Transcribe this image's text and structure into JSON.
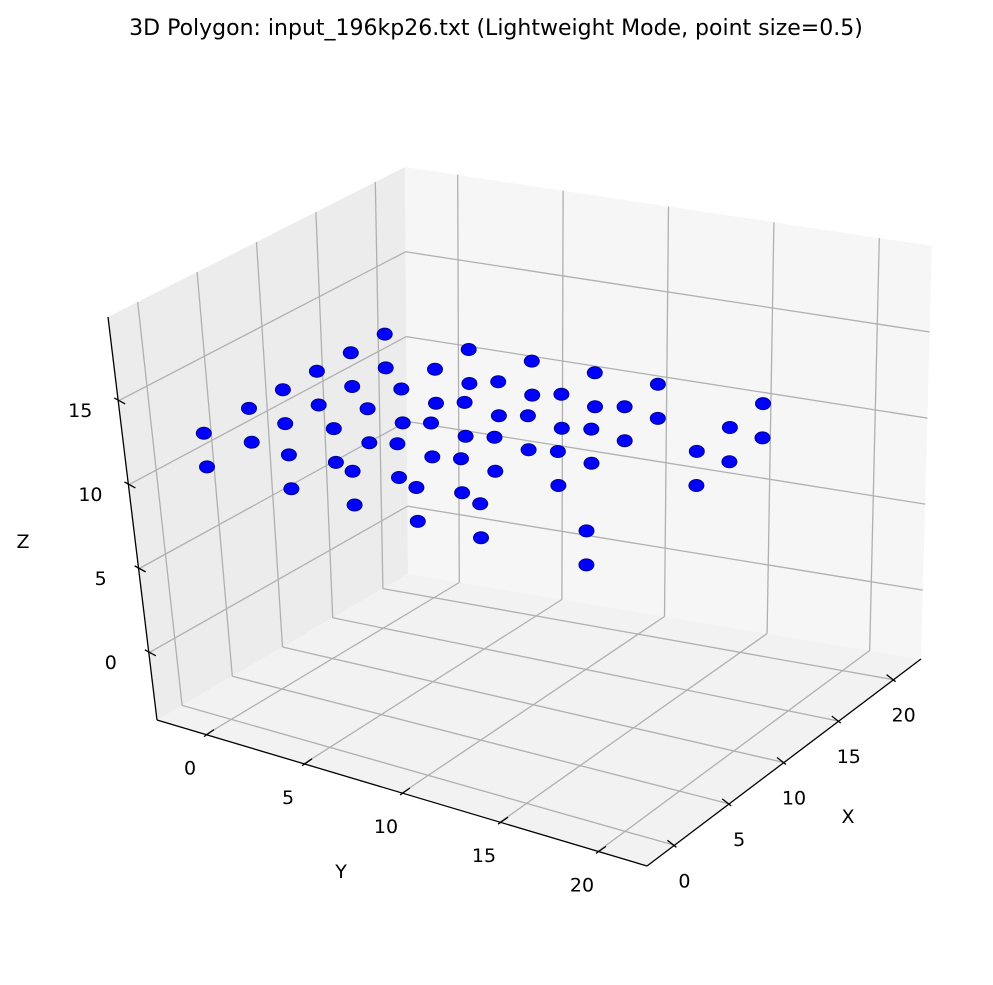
{
  "chart_data": {
    "type": "scatter",
    "projection": "3d",
    "title": "3D Polygon: input_196kp26.txt (Lightweight Mode, point size=0.5)",
    "xlabel": "X",
    "ylabel": "Y",
    "zlabel": "Z",
    "xticks": [
      "0",
      "5",
      "10",
      "15",
      "20"
    ],
    "yticks": [
      "0",
      "5",
      "10",
      "15",
      "20"
    ],
    "zticks": [
      "0",
      "5",
      "10",
      "15"
    ],
    "xlim": [
      -2.5,
      22.5
    ],
    "ylim": [
      -2.5,
      22.5
    ],
    "zlim": [
      -4,
      20
    ],
    "grid": true,
    "marker_color": "#0000ff",
    "marker_edge_color": "#00008b",
    "pane_colors": {
      "floor": "#f2f2f2",
      "left_wall": "#ececec",
      "back_wall": "#f6f6f6"
    },
    "grid_color": "#b0b0b0",
    "series": [
      {
        "points": [
          [
            16,
            0,
            11
          ],
          [
            16,
            0,
            13
          ],
          [
            16,
            4,
            11
          ],
          [
            16,
            4,
            13
          ],
          [
            16,
            7,
            11
          ],
          [
            16,
            7,
            13
          ],
          [
            16,
            10,
            11
          ],
          [
            16,
            10,
            13
          ],
          [
            16,
            13,
            11
          ],
          [
            16,
            13,
            13
          ],
          [
            16,
            18,
            11
          ],
          [
            16,
            18,
            13
          ],
          [
            13,
            0,
            11
          ],
          [
            13,
            0,
            13
          ],
          [
            13,
            4,
            11
          ],
          [
            13,
            4,
            13
          ],
          [
            13,
            7,
            11
          ],
          [
            13,
            7,
            13
          ],
          [
            13,
            10,
            11
          ],
          [
            13,
            10,
            13
          ],
          [
            13,
            13,
            11
          ],
          [
            13,
            13,
            13
          ],
          [
            10,
            0,
            11
          ],
          [
            10,
            0,
            13
          ],
          [
            10,
            4,
            11
          ],
          [
            10,
            4,
            13
          ],
          [
            10,
            7,
            11
          ],
          [
            10,
            7,
            13
          ],
          [
            10,
            10,
            11
          ],
          [
            10,
            10,
            13
          ],
          [
            7,
            0,
            11
          ],
          [
            7,
            0,
            13
          ],
          [
            7,
            4,
            11
          ],
          [
            7,
            4,
            13
          ],
          [
            7,
            7,
            11
          ],
          [
            7,
            7,
            13
          ],
          [
            4,
            0,
            11
          ],
          [
            4,
            0,
            13
          ],
          [
            4,
            4,
            11
          ],
          [
            4,
            4,
            13
          ],
          [
            0,
            0,
            11
          ],
          [
            0,
            0,
            13
          ],
          [
            0,
            4,
            11
          ],
          [
            0,
            4,
            13
          ],
          [
            0,
            7,
            11
          ],
          [
            0,
            7,
            13
          ],
          [
            0,
            10,
            11
          ],
          [
            0,
            10,
            13
          ],
          [
            0,
            13,
            11
          ],
          [
            0,
            13,
            13
          ],
          [
            0,
            18,
            11
          ],
          [
            0,
            18,
            13
          ],
          [
            4,
            7,
            11
          ],
          [
            4,
            7,
            13
          ],
          [
            7,
            10,
            11
          ],
          [
            7,
            10,
            13
          ],
          [
            10,
            13,
            11
          ],
          [
            10,
            13,
            13
          ],
          [
            13,
            18,
            11
          ],
          [
            13,
            18,
            13
          ],
          [
            4,
            10,
            11
          ],
          [
            4,
            10,
            13
          ],
          [
            7,
            13,
            11
          ],
          [
            7,
            13,
            13
          ],
          [
            10,
            18,
            11
          ],
          [
            10,
            18,
            13
          ]
        ]
      }
    ]
  }
}
